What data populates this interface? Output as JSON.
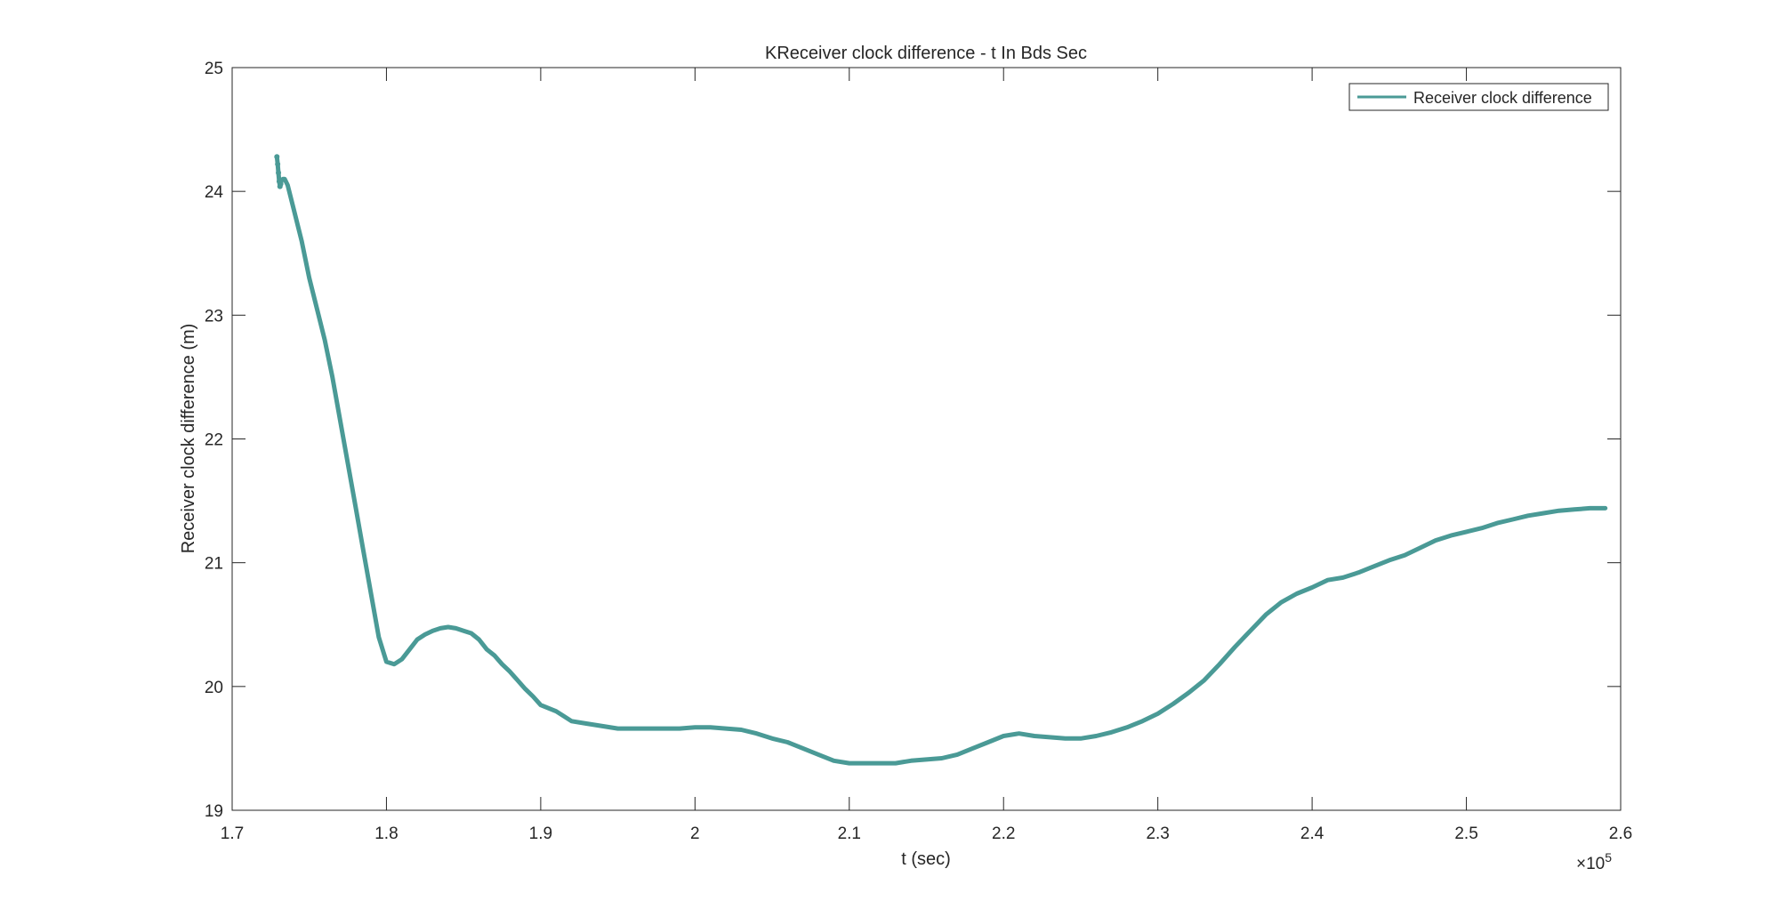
{
  "chart_data": {
    "type": "line",
    "title": "KReceiver clock difference - t In Bds Sec",
    "xlabel": "t (sec)",
    "ylabel": "Receiver clock difference (m)",
    "x_exponent_label": "×10",
    "x_exponent_power": "5",
    "xlim": [
      170000,
      260000
    ],
    "ylim": [
      19,
      25
    ],
    "x_ticks": [
      170000,
      180000,
      190000,
      200000,
      210000,
      220000,
      230000,
      240000,
      250000,
      260000
    ],
    "x_tick_labels": [
      "1.7",
      "1.8",
      "1.9",
      "2",
      "2.1",
      "2.2",
      "2.3",
      "2.4",
      "2.5",
      "2.6"
    ],
    "y_ticks": [
      19,
      20,
      21,
      22,
      23,
      24,
      25
    ],
    "y_tick_labels": [
      "19",
      "20",
      "21",
      "22",
      "23",
      "24",
      "25"
    ],
    "grid": false,
    "legend_position": "top-right",
    "series": [
      {
        "name": "Receiver clock difference",
        "color": "#4a9a96",
        "x": [
          172900,
          172950,
          173000,
          173050,
          173100,
          173150,
          173200,
          173300,
          173400,
          173600,
          174000,
          174500,
          175000,
          175500,
          176000,
          176500,
          177000,
          177500,
          178000,
          178500,
          179000,
          179500,
          180000,
          180500,
          181000,
          181500,
          182000,
          182500,
          183000,
          183500,
          184000,
          184500,
          185000,
          185500,
          186000,
          186500,
          187000,
          187500,
          188000,
          188500,
          189000,
          189500,
          190000,
          191000,
          192000,
          193000,
          194000,
          195000,
          196000,
          197000,
          198000,
          199000,
          200000,
          201000,
          202000,
          203000,
          204000,
          205000,
          206000,
          207000,
          208000,
          209000,
          210000,
          211000,
          212000,
          213000,
          214000,
          215000,
          216000,
          217000,
          218000,
          219000,
          220000,
          221000,
          222000,
          223000,
          224000,
          225000,
          226000,
          227000,
          228000,
          229000,
          230000,
          231000,
          232000,
          233000,
          234000,
          235000,
          236000,
          237000,
          238000,
          239000,
          240000,
          241000,
          242000,
          243000,
          244000,
          245000,
          246000,
          247000,
          248000,
          249000,
          250000,
          251000,
          252000,
          253000,
          254000,
          255000,
          256000,
          257000,
          258000,
          259000
        ],
        "values": [
          24.28,
          24.22,
          24.15,
          24.08,
          24.04,
          24.06,
          24.09,
          24.1,
          24.1,
          24.05,
          23.85,
          23.6,
          23.3,
          23.05,
          22.8,
          22.5,
          22.15,
          21.8,
          21.45,
          21.1,
          20.75,
          20.4,
          20.2,
          20.18,
          20.22,
          20.3,
          20.38,
          20.42,
          20.45,
          20.47,
          20.48,
          20.47,
          20.45,
          20.43,
          20.38,
          20.3,
          20.25,
          20.18,
          20.12,
          20.05,
          19.98,
          19.92,
          19.85,
          19.8,
          19.72,
          19.7,
          19.68,
          19.66,
          19.66,
          19.66,
          19.66,
          19.66,
          19.67,
          19.67,
          19.66,
          19.65,
          19.62,
          19.58,
          19.55,
          19.5,
          19.45,
          19.4,
          19.38,
          19.38,
          19.38,
          19.38,
          19.4,
          19.41,
          19.42,
          19.45,
          19.5,
          19.55,
          19.6,
          19.62,
          19.6,
          19.59,
          19.58,
          19.58,
          19.6,
          19.63,
          19.67,
          19.72,
          19.78,
          19.86,
          19.95,
          20.05,
          20.18,
          20.32,
          20.45,
          20.58,
          20.68,
          20.75,
          20.8,
          20.86,
          20.88,
          20.92,
          20.97,
          21.02,
          21.06,
          21.12,
          21.18,
          21.22,
          21.25,
          21.28,
          21.32,
          21.35,
          21.38,
          21.4,
          21.42,
          21.43,
          21.44,
          21.44
        ]
      }
    ]
  }
}
